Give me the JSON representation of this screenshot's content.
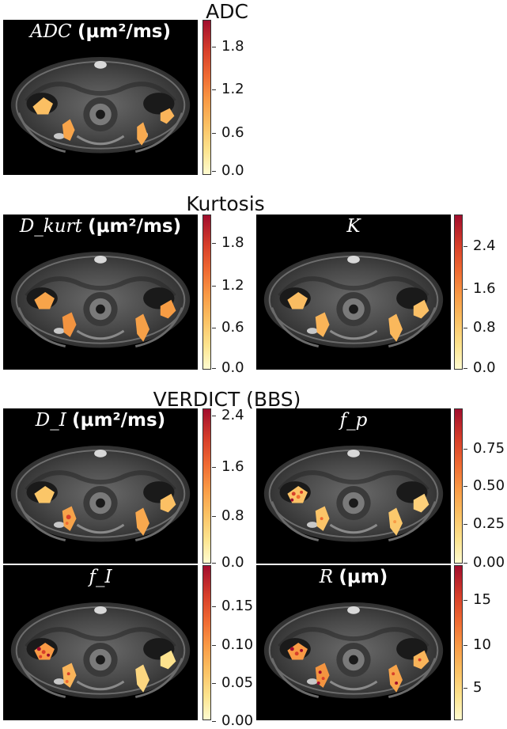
{
  "sections": {
    "adc": "ADC",
    "kurtosis": "Kurtosis",
    "verdict": "VERDICT (BBS)"
  },
  "panels": {
    "adc": {
      "name": "ADC",
      "unit": "(μm²/ms)",
      "ticks": [
        "1.8",
        "1.2",
        "0.6",
        "0.0"
      ]
    },
    "dkurt": {
      "name": "D_kurt",
      "unit": "(μm²/ms)",
      "ticks": [
        "1.8",
        "1.2",
        "0.6",
        "0.0"
      ]
    },
    "k": {
      "name": "K",
      "unit": "",
      "ticks": [
        "2.4",
        "1.6",
        "0.8",
        "0.0"
      ]
    },
    "di": {
      "name": "D_I",
      "unit": "(μm²/ms)",
      "ticks": [
        "2.4",
        "1.6",
        "0.8",
        "0.0"
      ]
    },
    "fp": {
      "name": "f_p",
      "unit": "",
      "ticks": [
        "0.75",
        "0.50",
        "0.25",
        "0.00"
      ]
    },
    "fi": {
      "name": "f_I",
      "unit": "",
      "ticks": [
        "0.15",
        "0.10",
        "0.05",
        "0.00"
      ]
    },
    "r": {
      "name": "R",
      "unit": "(μm)",
      "ticks": [
        "15",
        "10",
        "5"
      ]
    }
  },
  "colormap": [
    "#fffbd0",
    "#fde48f",
    "#fbc062",
    "#f99a45",
    "#ef6a32",
    "#d8402a",
    "#a10d2d"
  ]
}
